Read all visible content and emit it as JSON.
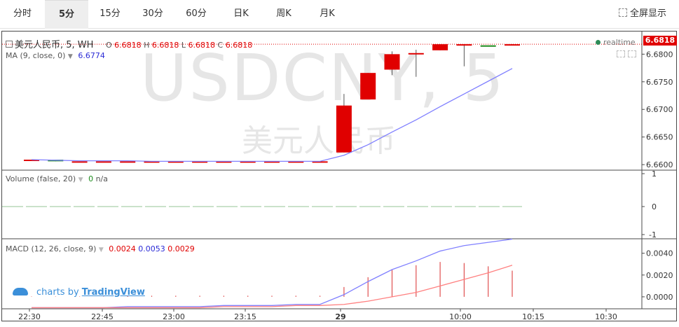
{
  "toolbar": {
    "tabs": [
      {
        "label": "分时"
      },
      {
        "label": "5分"
      },
      {
        "label": "15分"
      },
      {
        "label": "30分"
      },
      {
        "label": "60分"
      },
      {
        "label": "日K"
      },
      {
        "label": "周K"
      },
      {
        "label": "月K"
      }
    ],
    "active_tab": "5分",
    "fullscreen_label": "全屏显示"
  },
  "symbol": {
    "watermark": "USDCNY, 5",
    "watermark_sub": "美元人民币",
    "title": "美元人民币, 5, WH",
    "ohlc": {
      "o_label": "O",
      "o": "6.6818",
      "h_label": "H",
      "h": "6.6818",
      "l_label": "L",
      "l": "6.6818",
      "c_label": "C",
      "c": "6.6818"
    },
    "last_price": "6.6818",
    "realtime": "realtime"
  },
  "ma_legend": {
    "label": "MA (9, close, 0)",
    "value": "6.6774"
  },
  "volume_legend": {
    "label": "Volume (false, 20)",
    "value": "0",
    "value2": "n/a"
  },
  "macd_legend": {
    "label": "MACD (12, 26, close, 9)",
    "v1": "0.0024",
    "v2": "0.0053",
    "v3": "0.0029"
  },
  "branding": {
    "prefix": "charts by",
    "link": "TradingView"
  },
  "colors": {
    "up": "#e00000",
    "down": "#1e8c1e",
    "ma": "#8080ff",
    "signal": "#ff8080"
  },
  "chart_data": {
    "type": "candlestick",
    "price_axis": {
      "ticks": [
        "6.6800",
        "6.6750",
        "6.6700",
        "6.6650",
        "6.6600"
      ],
      "range": [
        6.659,
        6.6822
      ]
    },
    "volume_axis": {
      "ticks": [
        "1",
        "0",
        "-1"
      ]
    },
    "macd_axis": {
      "ticks": [
        "0.0040",
        "0.0020",
        "0.0000"
      ],
      "range": [
        -0.0011,
        0.0052
      ]
    },
    "time_axis": {
      "ticks": [
        "22:30",
        "22:45",
        "23:00",
        "23:15",
        "29",
        "10:00",
        "10:15",
        "10:30"
      ]
    },
    "candles": [
      {
        "o": 6.6609,
        "h": 6.6609,
        "l": 6.6609,
        "c": 6.6609
      },
      {
        "o": 6.6609,
        "h": 6.6609,
        "l": 6.6606,
        "c": 6.6606
      },
      {
        "o": 6.6606,
        "h": 6.6606,
        "l": 6.6606,
        "c": 6.6606
      },
      {
        "o": 6.6606,
        "h": 6.6606,
        "l": 6.6606,
        "c": 6.6606
      },
      {
        "o": 6.6606,
        "h": 6.6606,
        "l": 6.6606,
        "c": 6.6606
      },
      {
        "o": 6.6606,
        "h": 6.6606,
        "l": 6.6606,
        "c": 6.6606
      },
      {
        "o": 6.6606,
        "h": 6.6606,
        "l": 6.6606,
        "c": 6.6606
      },
      {
        "o": 6.6606,
        "h": 6.6606,
        "l": 6.6606,
        "c": 6.6606
      },
      {
        "o": 6.6606,
        "h": 6.6606,
        "l": 6.6606,
        "c": 6.6606
      },
      {
        "o": 6.6606,
        "h": 6.6606,
        "l": 6.6606,
        "c": 6.6606
      },
      {
        "o": 6.6606,
        "h": 6.6606,
        "l": 6.6606,
        "c": 6.6606
      },
      {
        "o": 6.6606,
        "h": 6.6606,
        "l": 6.6606,
        "c": 6.6606
      },
      {
        "o": 6.6606,
        "h": 6.6606,
        "l": 6.6606,
        "c": 6.6606
      },
      {
        "o": 6.6622,
        "h": 6.6728,
        "l": 6.6622,
        "c": 6.6707
      },
      {
        "o": 6.6718,
        "h": 6.6766,
        "l": 6.6718,
        "c": 6.6766
      },
      {
        "o": 6.6772,
        "h": 6.6805,
        "l": 6.6762,
        "c": 6.68
      },
      {
        "o": 6.68,
        "h": 6.6808,
        "l": 6.6759,
        "c": 6.6802
      },
      {
        "o": 6.6807,
        "h": 6.6818,
        "l": 6.6807,
        "c": 6.6818
      },
      {
        "o": 6.6816,
        "h": 6.6818,
        "l": 6.6778,
        "c": 6.6818
      },
      {
        "o": 6.6816,
        "h": 6.6816,
        "l": 6.6816,
        "c": 6.6815
      },
      {
        "o": 6.6816,
        "h": 6.6818,
        "l": 6.6816,
        "c": 6.6818
      }
    ],
    "ma": [
      6.6609,
      6.6608,
      6.6607,
      6.6607,
      6.6607,
      6.6606,
      6.6606,
      6.6606,
      6.6606,
      6.6606,
      6.6606,
      6.6606,
      6.6606,
      6.6617,
      6.6636,
      6.6659,
      6.6681,
      6.6705,
      6.6728,
      6.6751,
      6.6774
    ],
    "macd_line": [
      -0.001,
      -0.001,
      -0.001,
      -0.001,
      -0.0009,
      -0.0009,
      -0.0009,
      -0.0009,
      -0.0008,
      -0.0008,
      -0.0008,
      -0.0007,
      -0.0007,
      0.0002,
      0.0014,
      0.0025,
      0.0033,
      0.0042,
      0.0047,
      0.005,
      0.0053
    ],
    "signal_line": [
      -0.001,
      -0.001,
      -0.001,
      -0.001,
      -0.001,
      -0.001,
      -0.001,
      -0.001,
      -0.0009,
      -0.0009,
      -0.0009,
      -0.0008,
      -0.0008,
      -0.0007,
      -0.0004,
      0.0,
      0.0004,
      0.001,
      0.0016,
      0.0022,
      0.0029
    ],
    "histogram": [
      0,
      0,
      0,
      0,
      0.0001,
      0.0001,
      0.0001,
      0.0001,
      0.0001,
      0.0001,
      0.0001,
      0.0001,
      0.0001,
      0.0009,
      0.0018,
      0.0025,
      0.0029,
      0.0032,
      0.0031,
      0.0028,
      0.0024
    ]
  }
}
